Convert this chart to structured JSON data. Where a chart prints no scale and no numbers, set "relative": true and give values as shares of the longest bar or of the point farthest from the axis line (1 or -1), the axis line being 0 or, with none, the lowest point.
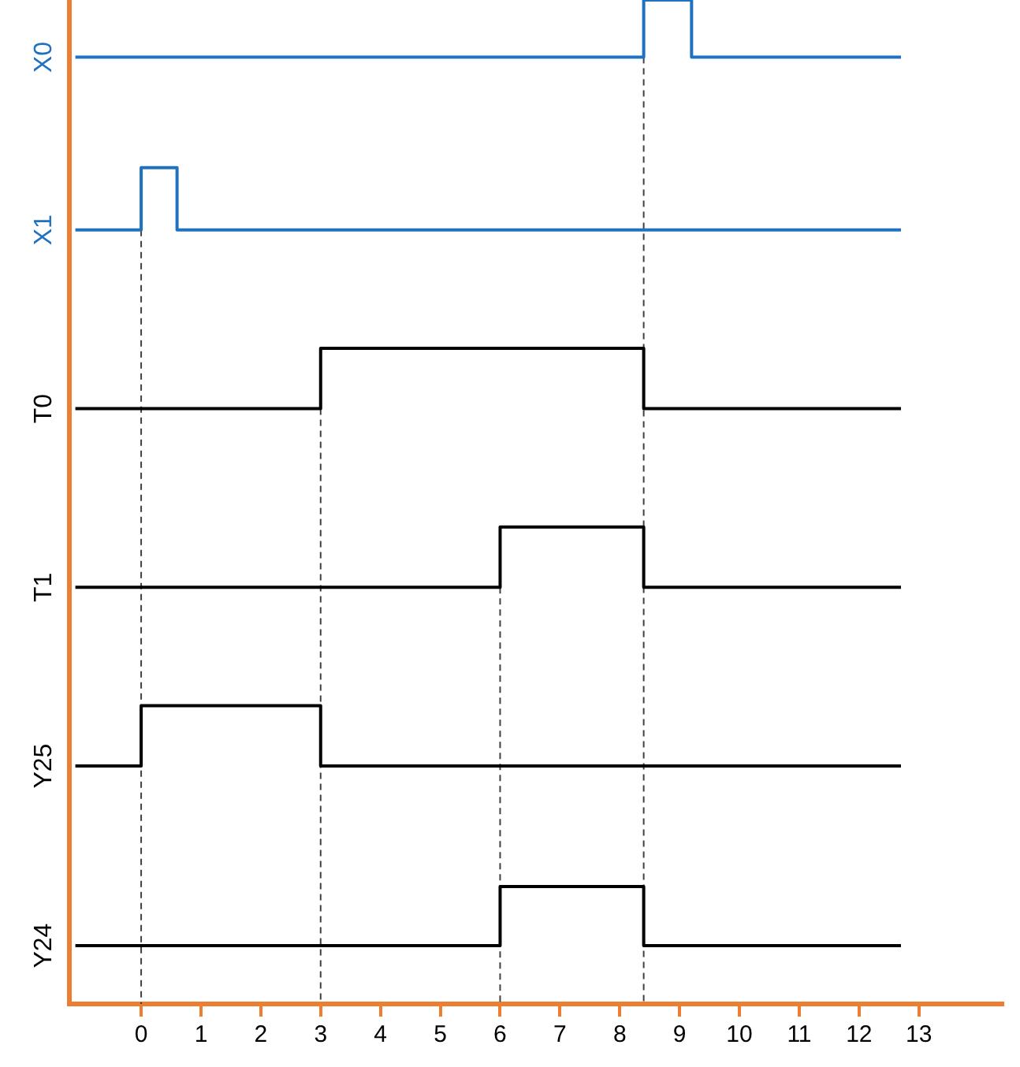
{
  "chart_data": {
    "type": "step",
    "relative": true,
    "xlim": [
      -1.2,
      14.4
    ],
    "xticks": [
      0,
      1,
      2,
      3,
      4,
      5,
      6,
      7,
      8,
      9,
      10,
      11,
      12,
      13
    ],
    "legend": false,
    "series": [
      {
        "name": "X0",
        "color": "#1f72c0",
        "x": [
          -1.1,
          8.4,
          9.2,
          12.7
        ],
        "values": [
          0.943,
          1,
          0.943,
          0.943
        ]
      },
      {
        "name": "X1",
        "color": "#1f72c0",
        "x": [
          -1.1,
          0,
          0.6,
          12.7
        ],
        "values": [
          0.771,
          0.833,
          0.771,
          0.771
        ]
      },
      {
        "name": "T0",
        "color": "#000000",
        "x": [
          -1.1,
          3,
          8.4,
          12.7
        ],
        "values": [
          0.593,
          0.653,
          0.593,
          0.593
        ]
      },
      {
        "name": "T1",
        "color": "#000000",
        "x": [
          -1.1,
          6,
          8.4,
          12.7
        ],
        "values": [
          0.415,
          0.475,
          0.415,
          0.415
        ]
      },
      {
        "name": "Y25",
        "color": "#000000",
        "x": [
          -1.1,
          0,
          3,
          12.7
        ],
        "values": [
          0.237,
          0.297,
          0.237,
          0.237
        ]
      },
      {
        "name": "Y24",
        "color": "#000000",
        "x": [
          -1.1,
          6,
          8.4,
          12.7
        ],
        "values": [
          0.058,
          0.117,
          0.058,
          0.058
        ]
      }
    ],
    "ref_lines": [
      {
        "axis": "x",
        "value": 0,
        "color": "#404040",
        "line_style": "dashed"
      },
      {
        "axis": "x",
        "value": 3,
        "color": "#404040",
        "line_style": "dashed"
      },
      {
        "axis": "x",
        "value": 6,
        "color": "#404040",
        "line_style": "dashed"
      },
      {
        "axis": "x",
        "value": 8.4,
        "color": "#404040",
        "line_style": "dashed"
      }
    ]
  }
}
